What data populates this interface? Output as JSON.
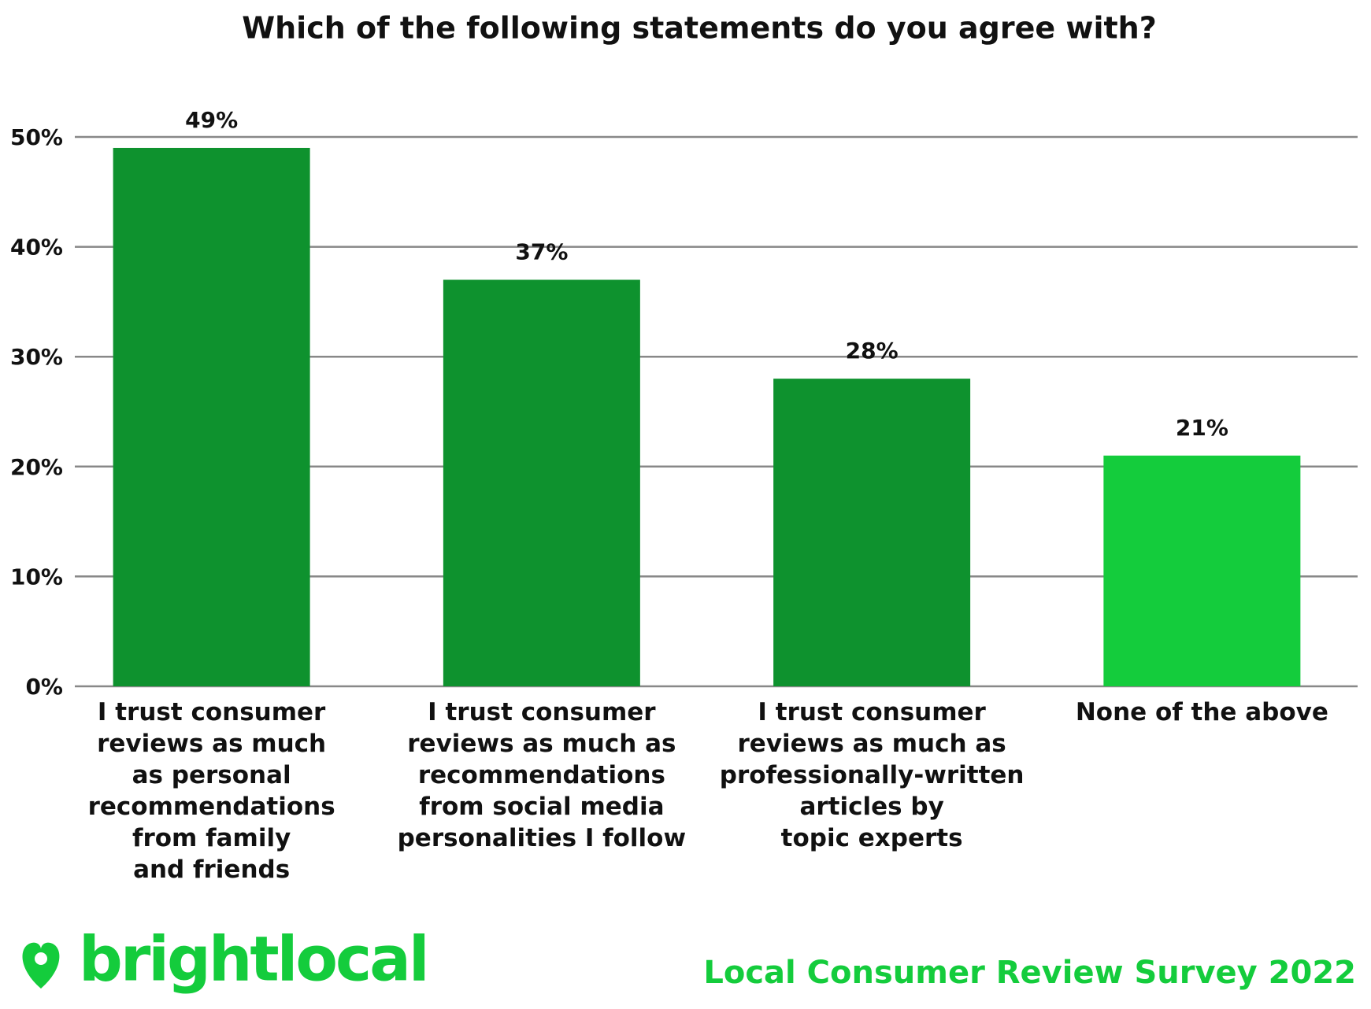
{
  "chart_data": {
    "type": "bar",
    "title": "Which of the following statements do you agree with?",
    "categories": [
      "I trust consumer\nreviews as much\nas personal\nrecommendations\nfrom family\nand friends",
      "I trust consumer\nreviews as much as\nrecommendations\nfrom social media\npersonalities I follow",
      "I trust consumer\nreviews as much as\nprofessionally-written\narticles by\ntopic experts",
      "None of the above"
    ],
    "values": [
      49,
      37,
      28,
      21
    ],
    "value_labels": [
      "49%",
      "37%",
      "28%",
      "21%"
    ],
    "colors": [
      "#0e922e",
      "#0e922e",
      "#0e922e",
      "#14cc3c"
    ],
    "ylim": [
      0,
      50
    ],
    "yticks": [
      {
        "value": 0,
        "label": "0%"
      },
      {
        "value": 10,
        "label": "10%"
      },
      {
        "value": 20,
        "label": "20%"
      },
      {
        "value": 30,
        "label": "30%"
      },
      {
        "value": 40,
        "label": "40%"
      },
      {
        "value": 50,
        "label": "50%"
      }
    ],
    "grid": true,
    "brand": "brightlocal",
    "footer": "Local Consumer Review Survey 2022"
  }
}
